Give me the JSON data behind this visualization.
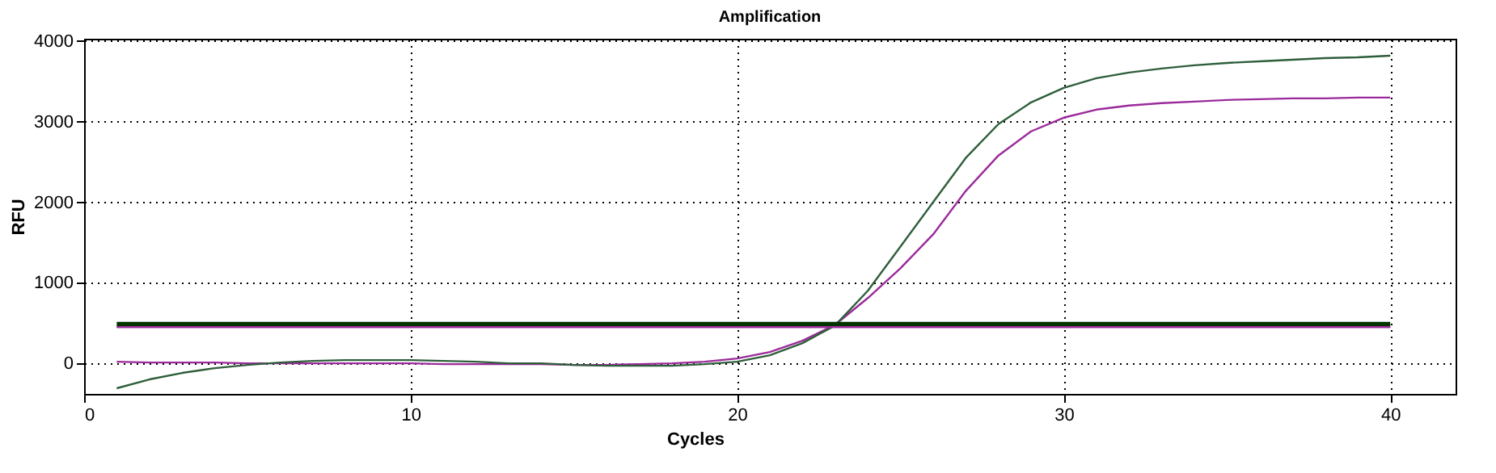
{
  "chart_data": {
    "type": "line",
    "title": "Amplification",
    "xlabel": "Cycles",
    "ylabel": "RFU",
    "x": [
      1,
      2,
      3,
      4,
      5,
      6,
      7,
      8,
      9,
      10,
      11,
      12,
      13,
      14,
      15,
      16,
      17,
      18,
      19,
      20,
      21,
      22,
      23,
      24,
      25,
      26,
      27,
      28,
      29,
      30,
      31,
      32,
      33,
      34,
      35,
      36,
      37,
      38,
      39,
      40
    ],
    "series": [
      {
        "color": "#9b2a9b",
        "values": [
          20,
          10,
          10,
          10,
          0,
          0,
          0,
          0,
          0,
          0,
          -10,
          -10,
          -10,
          -10,
          -20,
          -20,
          -10,
          0,
          20,
          60,
          140,
          280,
          480,
          810,
          1180,
          1600,
          2140,
          2580,
          2880,
          3050,
          3150,
          3200,
          3230,
          3250,
          3270,
          3280,
          3290,
          3290,
          3300,
          3300
        ]
      },
      {
        "color": "#2e5e3a",
        "values": [
          -310,
          -200,
          -120,
          -60,
          -20,
          10,
          30,
          40,
          40,
          40,
          30,
          20,
          0,
          0,
          -20,
          -30,
          -30,
          -30,
          -10,
          20,
          100,
          250,
          470,
          900,
          1450,
          2000,
          2550,
          2970,
          3240,
          3420,
          3540,
          3610,
          3660,
          3700,
          3730,
          3750,
          3770,
          3790,
          3800,
          3820
        ]
      }
    ],
    "ref_lines": [
      {
        "axis": "y",
        "value": 480,
        "color": "#003300"
      },
      {
        "axis": "y",
        "value": 450,
        "color": "#9b2a9b"
      }
    ],
    "xlim": [
      0,
      42
    ],
    "xticks": [
      0,
      10,
      20,
      30,
      40
    ],
    "ylim": [
      -380,
      4030
    ],
    "yticks": [
      0,
      1000,
      2000,
      3000,
      4000
    ],
    "grid": true,
    "marker": "none",
    "line_style": "solid"
  }
}
